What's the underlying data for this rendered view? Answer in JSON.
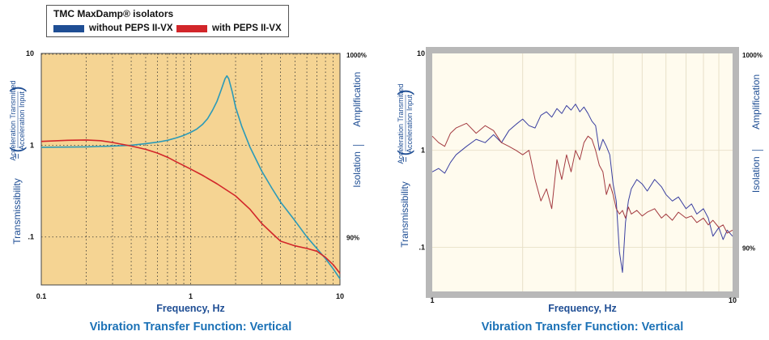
{
  "legend": {
    "title": "TMC MaxDamp® isolators",
    "items": [
      {
        "label": "without PEPS II-VX",
        "color": "#1f4e94"
      },
      {
        "label": "with PEPS II-VX",
        "color": "#d2262a"
      }
    ]
  },
  "colors": {
    "left_bg": "#f5d493",
    "right_bg": "#fffbee",
    "frame": "#b8b8b8",
    "title_blue": "#1b71b6",
    "axis_blue": "#1f4e94"
  },
  "chart_data": [
    {
      "type": "line",
      "title": "Vibration Transfer Function: Vertical",
      "xlabel": "Frequency, Hz",
      "ylabel": "Transmissibility",
      "ylabel_equals": "=",
      "ylabel_numerator": "Acceleration Transmitted",
      "ylabel_denominator": "Acceleration Input",
      "right_labels": {
        "upper": "Amplification",
        "lower": "Isolation",
        "pct_top": "1000%",
        "pct_mid": "90%"
      },
      "x_scale": "log",
      "y_scale": "log",
      "xlim": [
        0.1,
        10
      ],
      "ylim": [
        0.03,
        10
      ],
      "x_ticks": [
        "0.1",
        "1",
        "10"
      ],
      "y_ticks": [
        "10",
        "1",
        ".1"
      ],
      "grid": "dotted",
      "series": [
        {
          "name": "without PEPS II-VX",
          "color": "#2b9ab8",
          "x": [
            0.1,
            0.2,
            0.3,
            0.4,
            0.5,
            0.6,
            0.7,
            0.8,
            0.9,
            1.0,
            1.1,
            1.2,
            1.3,
            1.4,
            1.5,
            1.6,
            1.7,
            1.75,
            1.8,
            1.9,
            2.0,
            2.2,
            2.5,
            3.0,
            3.5,
            4.0,
            5.0,
            6.0,
            7.0,
            8.0,
            9.0,
            10.0
          ],
          "y": [
            0.95,
            0.96,
            0.98,
            1.0,
            1.04,
            1.08,
            1.13,
            1.2,
            1.28,
            1.38,
            1.5,
            1.68,
            1.95,
            2.4,
            3.0,
            4.0,
            5.3,
            5.7,
            5.3,
            3.8,
            2.6,
            1.6,
            0.95,
            0.52,
            0.34,
            0.24,
            0.15,
            0.1,
            0.075,
            0.058,
            0.045,
            0.035
          ]
        },
        {
          "name": "with PEPS II-VX",
          "color": "#d2262a",
          "x": [
            0.1,
            0.15,
            0.2,
            0.25,
            0.3,
            0.35,
            0.4,
            0.5,
            0.6,
            0.7,
            0.8,
            1.0,
            1.2,
            1.5,
            2.0,
            2.5,
            3.0,
            3.5,
            4.0,
            5.0,
            6.0,
            7.0,
            8.0,
            9.0,
            10.0
          ],
          "y": [
            1.1,
            1.13,
            1.14,
            1.12,
            1.07,
            1.02,
            0.98,
            0.9,
            0.82,
            0.74,
            0.66,
            0.55,
            0.47,
            0.38,
            0.28,
            0.2,
            0.14,
            0.11,
            0.09,
            0.08,
            0.075,
            0.07,
            0.06,
            0.05,
            0.04
          ]
        }
      ]
    },
    {
      "type": "line",
      "title": "Vibration Transfer Function: Vertical",
      "xlabel": "Frequency, Hz",
      "ylabel": "Transmissibility",
      "ylabel_equals": "=",
      "ylabel_numerator": "Acceleration Transmitted",
      "ylabel_denominator": "Acceleration Input",
      "right_labels": {
        "upper": "Amplification",
        "lower": "Isolation",
        "pct_top": "1000%",
        "pct_mid": "90%"
      },
      "x_scale": "log",
      "y_scale": "log",
      "xlim": [
        1,
        10
      ],
      "ylim": [
        0.035,
        10
      ],
      "x_ticks": [
        "1",
        "10"
      ],
      "y_ticks": [
        "10",
        "1",
        ".1"
      ],
      "grid": "light",
      "series": [
        {
          "name": "without PEPS II-VX",
          "color": "#3a3fa0",
          "x": [
            1.0,
            1.05,
            1.1,
            1.15,
            1.2,
            1.3,
            1.4,
            1.5,
            1.6,
            1.7,
            1.8,
            1.9,
            2.0,
            2.1,
            2.2,
            2.3,
            2.4,
            2.5,
            2.6,
            2.7,
            2.8,
            2.9,
            3.0,
            3.1,
            3.2,
            3.3,
            3.4,
            3.5,
            3.6,
            3.7,
            3.8,
            3.9,
            4.0,
            4.1,
            4.2,
            4.3,
            4.4,
            4.5,
            4.6,
            4.8,
            5.0,
            5.2,
            5.5,
            5.8,
            6.0,
            6.3,
            6.6,
            7.0,
            7.3,
            7.6,
            8.0,
            8.3,
            8.6,
            9.0,
            9.3,
            9.6,
            10.0
          ],
          "y": [
            0.6,
            0.65,
            0.58,
            0.75,
            0.9,
            1.1,
            1.3,
            1.2,
            1.45,
            1.2,
            1.6,
            1.85,
            2.1,
            1.8,
            1.7,
            2.3,
            2.5,
            2.2,
            2.7,
            2.4,
            2.9,
            2.6,
            3.0,
            2.5,
            2.8,
            2.4,
            2.0,
            1.8,
            1.0,
            1.3,
            1.1,
            0.9,
            0.45,
            0.3,
            0.09,
            0.055,
            0.18,
            0.3,
            0.4,
            0.5,
            0.45,
            0.38,
            0.5,
            0.42,
            0.35,
            0.3,
            0.33,
            0.25,
            0.28,
            0.22,
            0.25,
            0.2,
            0.13,
            0.16,
            0.12,
            0.15,
            0.13
          ]
        },
        {
          "name": "with PEPS II-VX",
          "color": "#a33a40",
          "x": [
            1.0,
            1.05,
            1.1,
            1.15,
            1.2,
            1.3,
            1.4,
            1.5,
            1.6,
            1.7,
            1.8,
            1.9,
            2.0,
            2.1,
            2.2,
            2.3,
            2.4,
            2.5,
            2.6,
            2.7,
            2.8,
            2.9,
            3.0,
            3.1,
            3.2,
            3.3,
            3.4,
            3.5,
            3.6,
            3.7,
            3.8,
            3.9,
            4.0,
            4.1,
            4.2,
            4.3,
            4.4,
            4.5,
            4.6,
            4.8,
            5.0,
            5.2,
            5.5,
            5.8,
            6.0,
            6.3,
            6.6,
            7.0,
            7.3,
            7.6,
            8.0,
            8.3,
            8.6,
            9.0,
            9.3,
            9.6,
            10.0
          ],
          "y": [
            1.4,
            1.2,
            1.1,
            1.5,
            1.7,
            1.9,
            1.5,
            1.8,
            1.6,
            1.2,
            1.1,
            1.0,
            0.9,
            1.0,
            0.5,
            0.3,
            0.4,
            0.25,
            0.8,
            0.5,
            0.9,
            0.6,
            1.0,
            0.8,
            1.2,
            1.4,
            1.3,
            1.0,
            0.7,
            0.6,
            0.35,
            0.45,
            0.35,
            0.25,
            0.22,
            0.24,
            0.2,
            0.26,
            0.22,
            0.24,
            0.21,
            0.23,
            0.25,
            0.2,
            0.22,
            0.19,
            0.23,
            0.2,
            0.21,
            0.18,
            0.2,
            0.17,
            0.19,
            0.16,
            0.17,
            0.14,
            0.15
          ]
        }
      ]
    }
  ]
}
